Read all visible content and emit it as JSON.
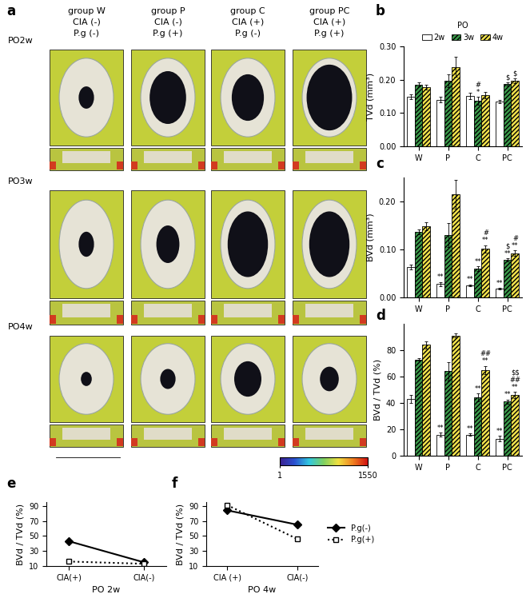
{
  "panel_a": {
    "label": "a",
    "columns": [
      {
        "name": "group W",
        "cia": "CIA (-)",
        "pg": "P.g (-)"
      },
      {
        "name": "group P",
        "cia": "CIA (-)",
        "pg": "P.g (+)"
      },
      {
        "name": "group C",
        "cia": "CIA (+)",
        "pg": "P.g (-)"
      },
      {
        "name": "group PC",
        "cia": "CIA (+)",
        "pg": "P.g (+)"
      }
    ],
    "rows": [
      "PO2w",
      "PO3w",
      "PO4w"
    ],
    "colorbar": {
      "range": [
        1,
        1550
      ],
      "ticks": [
        1,
        1550
      ]
    }
  },
  "chart_data": [
    {
      "type": "bar",
      "label": "b",
      "ylabel": "TVd (mm³)",
      "categories": [
        "W",
        "P",
        "C",
        "PC"
      ],
      "ylim": [
        0,
        0.3
      ],
      "yticks": [
        {
          "value": 0,
          "label": "0.00"
        },
        {
          "value": 0.1,
          "label": "0.10"
        },
        {
          "value": 0.2,
          "label": "0.20"
        },
        {
          "value": 0.3,
          "label": "0.30"
        }
      ],
      "legend": "top",
      "legend_title": "PO",
      "series": [
        {
          "name": "2w",
          "color": "#ffffff",
          "values": [
            0.148,
            0.14,
            0.152,
            0.135
          ],
          "errors": [
            0.007,
            0.008,
            0.01,
            0.005
          ],
          "marks": [
            null,
            null,
            null,
            null
          ]
        },
        {
          "name": "3w",
          "color": "#3a9a4a",
          "values": [
            0.186,
            0.197,
            0.136,
            0.188
          ],
          "errors": [
            0.006,
            0.02,
            0.012,
            0.005
          ],
          "marks": [
            null,
            null,
            [
              "#",
              "*"
            ],
            [
              "$"
            ]
          ]
        },
        {
          "name": "4w",
          "color": "#f2e34c",
          "values": [
            0.177,
            0.238,
            0.153,
            0.197
          ],
          "errors": [
            0.007,
            0.03,
            0.01,
            0.007
          ],
          "marks": [
            null,
            null,
            null,
            [
              "$"
            ]
          ]
        }
      ]
    },
    {
      "type": "bar",
      "label": "c",
      "ylabel": "BVd (mm³)",
      "categories": [
        "W",
        "P",
        "C",
        "PC"
      ],
      "ylim": [
        0,
        0.25
      ],
      "yticks": [
        {
          "value": 0,
          "label": "0.00"
        },
        {
          "value": 0.1,
          "label": "0.10"
        },
        {
          "value": 0.2,
          "label": "0.20"
        }
      ],
      "series": [
        {
          "name": "2w",
          "color": "#ffffff",
          "values": [
            0.064,
            0.028,
            0.025,
            0.018
          ],
          "errors": [
            0.005,
            0.004,
            0.002,
            0.002
          ],
          "marks": [
            null,
            [
              "**"
            ],
            [
              "**"
            ],
            [
              "**"
            ]
          ]
        },
        {
          "name": "3w",
          "color": "#3a9a4a",
          "values": [
            0.137,
            0.13,
            0.06,
            0.078
          ],
          "errors": [
            0.005,
            0.025,
            0.005,
            0.003
          ],
          "marks": [
            null,
            null,
            [
              "**"
            ],
            [
              "$",
              "**"
            ]
          ]
        },
        {
          "name": "4w",
          "color": "#f2e34c",
          "values": [
            0.148,
            0.215,
            0.101,
            0.092
          ],
          "errors": [
            0.008,
            0.03,
            0.008,
            0.006
          ],
          "marks": [
            null,
            null,
            [
              "#",
              "**"
            ],
            [
              "#",
              "**"
            ]
          ]
        }
      ]
    },
    {
      "type": "bar",
      "label": "d",
      "ylabel": "BVd / TVd (%)",
      "categories": [
        "W",
        "P",
        "C",
        "PC"
      ],
      "ylim": [
        0,
        100
      ],
      "yticks": [
        0,
        20,
        40,
        60,
        80
      ],
      "series": [
        {
          "name": "2w",
          "color": "#ffffff",
          "values": [
            43,
            16,
            16,
            13
          ],
          "errors": [
            3,
            1.5,
            1,
            2
          ],
          "marks": [
            null,
            [
              "**"
            ],
            [
              "**"
            ],
            [
              "**"
            ]
          ]
        },
        {
          "name": "3w",
          "color": "#3a9a4a",
          "values": [
            73,
            64,
            44,
            41
          ],
          "errors": [
            1,
            7,
            3,
            1.5
          ],
          "marks": [
            null,
            null,
            [
              "**"
            ],
            [
              "**"
            ]
          ]
        },
        {
          "name": "4w",
          "color": "#f2e34c",
          "values": [
            84,
            91,
            65,
            46
          ],
          "errors": [
            2.5,
            1.5,
            3,
            2.5
          ],
          "marks": [
            null,
            null,
            [
              "##",
              "**"
            ],
            [
              "$$",
              "##",
              "**"
            ]
          ]
        }
      ]
    },
    {
      "type": "line",
      "label": "e",
      "ylabel": "BVd / TVd (%)",
      "xlabel": "PO 2w",
      "categories": [
        "CIA(+)",
        "CIA(-)"
      ],
      "ylim": [
        10,
        95
      ],
      "yticks": [
        10,
        30,
        50,
        70,
        90
      ],
      "series": [
        {
          "name": "P.g(-)",
          "color": "#000000",
          "marker": "diamond",
          "line_style": "solid",
          "values": [
            43,
            15
          ]
        },
        {
          "name": "P.g(+)",
          "color": "#000000",
          "marker": "square",
          "line_style": "dotted",
          "values": [
            16,
            13
          ]
        }
      ]
    },
    {
      "type": "line",
      "label": "f",
      "ylabel": "BVd / TVd (%)",
      "xlabel": "PO 4w",
      "categories": [
        "CIA (+)",
        "CIA(-)"
      ],
      "ylim": [
        10,
        95
      ],
      "yticks": [
        10,
        30,
        50,
        70,
        90
      ],
      "legend": "right",
      "series": [
        {
          "name": "P.g(-)",
          "color": "#000000",
          "marker": "diamond",
          "line_style": "solid",
          "values": [
            84,
            65
          ]
        },
        {
          "name": "P.g(+)",
          "color": "#000000",
          "marker": "square",
          "line_style": "dotted",
          "values": [
            91,
            46
          ]
        }
      ]
    }
  ]
}
